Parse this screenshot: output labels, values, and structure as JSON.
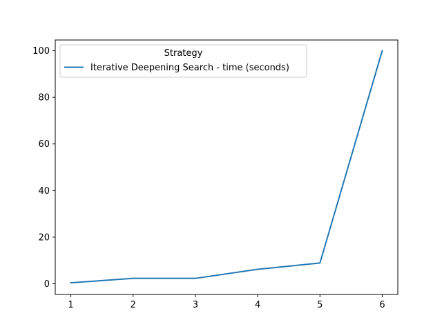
{
  "chart_data": {
    "type": "line",
    "title": "",
    "xlabel": "",
    "ylabel": "",
    "x": [
      1,
      2,
      3,
      4,
      5,
      6
    ],
    "series": [
      {
        "name": "Iterative Deepening Search - time (seconds)",
        "values": [
          0.4,
          2.3,
          2.3,
          6.2,
          8.9,
          100
        ],
        "color": "#1f77b4"
      }
    ],
    "xlim": [
      0.75,
      6.25
    ],
    "ylim": [
      -4.6,
      104.6
    ],
    "x_ticks": [
      1,
      2,
      3,
      4,
      5,
      6
    ],
    "y_ticks": [
      0,
      20,
      40,
      60,
      80,
      100
    ],
    "grid": false,
    "legend": {
      "title": "Strategy",
      "placement": "top-left"
    }
  }
}
